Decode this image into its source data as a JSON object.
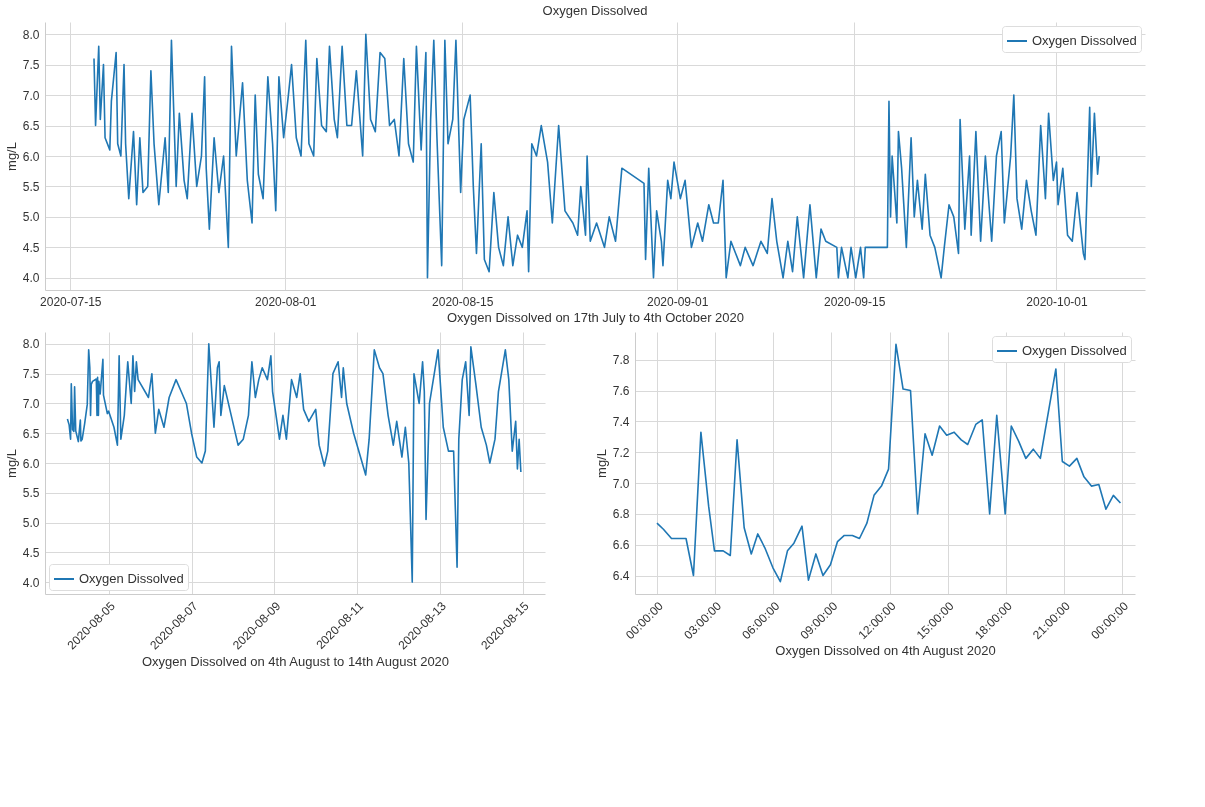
{
  "chart_data": [
    {
      "type": "line",
      "title": "Oxygen Dissolved",
      "xlabel": "Oxygen Dissolved on 17th July to 4th October 2020",
      "ylabel": "mg/L",
      "legend": "top right",
      "grid": true,
      "xlim": [
        "2020-07-13",
        "2020-10-08"
      ],
      "xticks": [
        "2020-07-15",
        "2020-08-01",
        "2020-08-15",
        "2020-09-01",
        "2020-09-15",
        "2020-10-01"
      ],
      "ylim": [
        3.8,
        8.2
      ],
      "yticks": [
        {
          "value": 4,
          "label": "4.0"
        },
        4.5,
        {
          "value": 5,
          "label": "5.0"
        },
        5.5,
        {
          "value": 6,
          "label": "6.0"
        },
        6.5,
        {
          "value": 7,
          "label": "7.0"
        },
        7.5,
        {
          "value": 8,
          "label": "8.0"
        }
      ],
      "x": [
        "2020-07-16T21:00",
        "2020-07-17T00:00",
        "2020-07-17T06:00",
        "2020-07-17T09:00",
        "2020-07-17T15:00",
        "2020-07-17T18:00",
        "2020-07-18T03:00",
        "2020-07-18T06:00",
        "2020-07-18T15:00",
        "2020-07-18T18:00",
        "2020-07-19T00:00",
        "2020-07-19T06:00",
        "2020-07-19T09:00",
        "2020-07-19T15:00",
        "2020-07-20T00:00",
        "2020-07-20T06:00",
        "2020-07-20T12:00",
        "2020-07-20T18:00",
        "2020-07-21T03:00",
        "2020-07-21T09:00",
        "2020-07-21T15:00",
        "2020-07-22T00:00",
        "2020-07-22T12:00",
        "2020-07-22T18:00",
        "2020-07-23T00:00",
        "2020-07-23T09:00",
        "2020-07-23T15:00",
        "2020-07-24T00:00",
        "2020-07-24T06:00",
        "2020-07-24T15:00",
        "2020-07-25T00:00",
        "2020-07-25T09:00",
        "2020-07-25T15:00",
        "2020-07-25T18:00",
        "2020-07-26T00:00",
        "2020-07-26T09:00",
        "2020-07-26T18:00",
        "2020-07-27T03:00",
        "2020-07-27T12:00",
        "2020-07-27T18:00",
        "2020-07-28T03:00",
        "2020-07-28T15:00",
        "2020-07-29T00:00",
        "2020-07-29T09:00",
        "2020-07-29T15:00",
        "2020-07-29T21:00",
        "2020-07-30T06:00",
        "2020-07-30T15:00",
        "2020-07-31T00:00",
        "2020-07-31T06:00",
        "2020-07-31T12:00",
        "2020-07-31T21:00",
        "2020-08-01T06:00",
        "2020-08-01T12:00",
        "2020-08-01T21:00",
        "2020-08-02T06:00",
        "2020-08-02T15:00",
        "2020-08-02T21:00",
        "2020-08-03T06:00",
        "2020-08-03T12:00",
        "2020-08-03T21:00",
        "2020-08-04T06:00",
        "2020-08-04T12:00",
        "2020-08-04T21:00",
        "2020-08-05T03:00",
        "2020-08-05T12:00",
        "2020-08-05T21:00",
        "2020-08-06T06:00",
        "2020-08-06T15:00",
        "2020-08-07T03:00",
        "2020-08-07T09:00",
        "2020-08-07T18:00",
        "2020-08-08T03:00",
        "2020-08-08T12:00",
        "2020-08-08T21:00",
        "2020-08-09T06:00",
        "2020-08-09T15:00",
        "2020-08-10T00:00",
        "2020-08-10T09:00",
        "2020-08-10T18:00",
        "2020-08-11T03:00",
        "2020-08-11T09:00",
        "2020-08-11T18:00",
        "2020-08-12T03:00",
        "2020-08-12T06:00",
        "2020-08-12T12:00",
        "2020-08-12T18:00",
        "2020-08-13T00:00",
        "2020-08-13T09:00",
        "2020-08-13T15:00",
        "2020-08-13T21:00",
        "2020-08-14T06:00",
        "2020-08-14T12:00",
        "2020-08-14T21:00",
        "2020-08-15T03:00",
        "2020-08-15T15:00",
        "2020-08-15T21:00",
        "2020-08-16T03:00",
        "2020-08-16T12:00",
        "2020-08-16T18:00",
        "2020-08-17T03:00",
        "2020-08-17T12:00",
        "2020-08-17T21:00",
        "2020-08-18T06:00",
        "2020-08-18T15:00",
        "2020-08-19T00:00",
        "2020-08-19T09:00",
        "2020-08-19T18:00",
        "2020-08-20T03:00",
        "2020-08-20T06:00",
        "2020-08-20T12:00",
        "2020-08-20T21:00",
        "2020-08-21T06:00",
        "2020-08-21T18:00",
        "2020-08-22T03:00",
        "2020-08-22T15:00",
        "2020-08-23T03:00",
        "2020-08-23T18:00",
        "2020-08-24T03:00",
        "2020-08-24T09:00",
        "2020-08-24T18:00",
        "2020-08-24T21:00",
        "2020-08-25T03:00",
        "2020-08-25T15:00",
        "2020-08-26T06:00",
        "2020-08-26T15:00",
        "2020-08-27T03:00",
        "2020-08-27T15:00",
        "2020-08-29T09:00",
        "2020-08-29T12:00",
        "2020-08-29T18:00",
        "2020-08-30T03:00",
        "2020-08-30T09:00",
        "2020-08-30T18:00",
        "2020-08-30T21:00",
        "2020-08-31T06:00",
        "2020-08-31T12:00",
        "2020-08-31T18:00",
        "2020-09-01T06:00",
        "2020-09-01T15:00",
        "2020-09-02T03:00",
        "2020-09-02T15:00",
        "2020-09-03T00:00",
        "2020-09-03T12:00",
        "2020-09-03T21:00",
        "2020-09-04T06:00",
        "2020-09-04T15:00",
        "2020-09-04T21:00",
        "2020-09-05T06:00",
        "2020-09-05T15:00",
        "2020-09-06T00:00",
        "2020-09-06T09:00",
        "2020-09-07T00:00",
        "2020-09-07T15:00",
        "2020-09-08T03:00",
        "2020-09-08T12:00",
        "2020-09-08T21:00",
        "2020-09-09T09:00",
        "2020-09-09T18:00",
        "2020-09-10T03:00",
        "2020-09-10T12:00",
        "2020-09-11T00:00",
        "2020-09-11T12:00",
        "2020-09-12T00:00",
        "2020-09-12T09:00",
        "2020-09-12T18:00",
        "2020-09-13T15:00",
        "2020-09-13T18:00",
        "2020-09-14T00:00",
        "2020-09-14T12:00",
        "2020-09-14T18:00",
        "2020-09-15T03:00",
        "2020-09-15T12:00",
        "2020-09-15T18:00",
        "2020-09-15T21:00",
        "2020-09-17T15:00",
        "2020-09-17T18:00",
        "2020-09-17T21:00",
        "2020-09-18T00:00",
        "2020-09-18T09:00",
        "2020-09-18T12:00",
        "2020-09-18T18:00",
        "2020-09-19T03:00",
        "2020-09-19T12:00",
        "2020-09-19T18:00",
        "2020-09-20T00:00",
        "2020-09-20T09:00",
        "2020-09-20T15:00",
        "2020-09-21T00:00",
        "2020-09-21T09:00",
        "2020-09-21T21:00",
        "2020-09-22T03:00",
        "2020-09-22T12:00",
        "2020-09-22T21:00",
        "2020-09-23T06:00",
        "2020-09-23T09:00",
        "2020-09-23T18:00",
        "2020-09-24T03:00",
        "2020-09-24T06:00",
        "2020-09-24T15:00",
        "2020-09-25T00:00",
        "2020-09-25T09:00",
        "2020-09-25T21:00",
        "2020-09-26T06:00",
        "2020-09-26T15:00",
        "2020-09-26T21:00",
        "2020-09-27T09:00",
        "2020-09-27T15:00",
        "2020-09-27T21:00",
        "2020-09-28T06:00",
        "2020-09-28T15:00",
        "2020-09-29T00:00",
        "2020-09-29T09:00",
        "2020-09-29T18:00",
        "2020-09-30T03:00",
        "2020-09-30T09:00",
        "2020-09-30T18:00",
        "2020-10-01T00:00",
        "2020-10-01T03:00",
        "2020-10-01T12:00",
        "2020-10-01T21:00",
        "2020-10-02T06:00",
        "2020-10-02T15:00",
        "2020-10-03T03:00",
        "2020-10-03T06:00",
        "2020-10-03T15:00",
        "2020-10-03T18:00",
        "2020-10-04T00:00",
        "2020-10-04T06:00",
        "2020-10-04T09:00"
      ],
      "series": [
        {
          "name": "Oxygen Dissolved",
          "color": "#1f77b4",
          "values": [
            7.6,
            6.5,
            7.8,
            6.6,
            7.5,
            6.3,
            6.1,
            6.9,
            7.7,
            6.2,
            6.0,
            7.5,
            6.2,
            5.3,
            6.4,
            5.2,
            6.3,
            5.4,
            5.5,
            7.4,
            6.2,
            5.2,
            6.3,
            5.4,
            7.9,
            5.5,
            6.7,
            5.6,
            5.3,
            6.7,
            5.5,
            6.0,
            7.3,
            5.8,
            4.8,
            6.3,
            5.4,
            6.0,
            4.5,
            7.8,
            6.0,
            7.2,
            5.6,
            4.9,
            7.0,
            5.7,
            5.3,
            7.3,
            6.2,
            5.1,
            7.3,
            6.3,
            7.0,
            7.5,
            6.3,
            6.0,
            7.9,
            6.2,
            6.0,
            7.6,
            6.5,
            6.4,
            7.8,
            6.6,
            6.3,
            7.8,
            6.5,
            6.5,
            7.4,
            6.0,
            8.0,
            6.6,
            6.4,
            7.7,
            7.6,
            6.5,
            6.6,
            6.0,
            7.6,
            6.2,
            5.9,
            7.8,
            6.1,
            7.7,
            4.0,
            6.6,
            7.9,
            6.3,
            4.2,
            7.9,
            6.2,
            6.6,
            7.9,
            5.4,
            6.6,
            7.0,
            5.5,
            4.4,
            6.2,
            4.3,
            4.1,
            5.4,
            4.5,
            4.2,
            5.0,
            4.2,
            4.7,
            4.5,
            5.1,
            4.1,
            6.2,
            6.0,
            6.5,
            5.9,
            4.9,
            6.5,
            5.1,
            4.9,
            4.7,
            5.5,
            4.7,
            6.0,
            4.6,
            4.9,
            4.5,
            5.0,
            4.6,
            5.8,
            5.55,
            4.3,
            5.8,
            4.0,
            5.1,
            4.6,
            4.2,
            5.6,
            5.3,
            5.9,
            5.3,
            5.6,
            4.5,
            4.9,
            4.6,
            5.2,
            4.9,
            4.9,
            5.6,
            4.0,
            4.6,
            4.4,
            4.2,
            4.5,
            4.2,
            4.6,
            4.4,
            5.3,
            4.6,
            4.0,
            4.6,
            4.1,
            5.0,
            4.0,
            5.2,
            4.0,
            4.8,
            4.6,
            4.5,
            4.0,
            4.5,
            4.0,
            4.5,
            4.0,
            4.5,
            4.0,
            4.5,
            4.5,
            6.9,
            5.0,
            6.0,
            4.9,
            6.4,
            5.8,
            4.5,
            6.3,
            5.0,
            5.6,
            4.8,
            5.7,
            4.7,
            4.5,
            4.0,
            4.5,
            5.2,
            5.0,
            4.4,
            6.6,
            4.8,
            6.0,
            4.7,
            6.4,
            4.6,
            6.0,
            4.6,
            6.0,
            6.4,
            4.9,
            6.0,
            7.0,
            5.3,
            4.8,
            5.6,
            5.1,
            4.7,
            6.5,
            5.3,
            6.7,
            5.6,
            5.9,
            5.2,
            5.8,
            4.7,
            4.6,
            5.4,
            4.4,
            4.3,
            6.8,
            5.5,
            6.7,
            5.7,
            6.0
          ]
        }
      ]
    },
    {
      "type": "line",
      "xlabel": "Oxygen Dissolved on 4th August to 14th August 2020",
      "ylabel": "mg/L",
      "legend": "bottom left",
      "grid": true,
      "xlim": [
        "2020-08-03T11:00",
        "2020-08-15T13:00"
      ],
      "xticks": [
        "2020-08-05",
        "2020-08-07",
        "2020-08-09",
        "2020-08-11",
        "2020-08-13",
        "2020-08-15"
      ],
      "ylim": [
        3.8,
        8.2
      ],
      "yticks": [
        {
          "value": 4,
          "label": "4.0"
        },
        4.5,
        {
          "value": 5,
          "label": "5.0"
        },
        5.5,
        {
          "value": 6,
          "label": "6.0"
        },
        6.5,
        {
          "value": 7,
          "label": "7.0"
        },
        7.5,
        {
          "value": 8,
          "label": "8.0"
        }
      ],
      "x": [
        "2020-08-04T00:00",
        "2020-08-04T01:00",
        "2020-08-04T01:50",
        "2020-08-04T02:15",
        "2020-08-04T03:00",
        "2020-08-04T03:45",
        "2020-08-04T04:10",
        "2020-08-04T04:50",
        "2020-08-04T06:20",
        "2020-08-04T07:30",
        "2020-08-04T07:50",
        "2020-08-04T08:35",
        "2020-08-04T10:00",
        "2020-08-04T11:30",
        "2020-08-04T12:20",
        "2020-08-04T13:00",
        "2020-08-04T13:25",
        "2020-08-04T13:50",
        "2020-08-04T14:35",
        "2020-08-04T16:45",
        "2020-08-04T17:10",
        "2020-08-04T17:30",
        "2020-08-04T18:00",
        "2020-08-04T18:15",
        "2020-08-04T19:00",
        "2020-08-04T20:35",
        "2020-08-04T20:55",
        "2020-08-04T23:10",
        "2020-08-04T23:55",
        "2020-08-05T03:00",
        "2020-08-05T05:00",
        "2020-08-05T06:00",
        "2020-08-05T07:00",
        "2020-08-05T09:00",
        "2020-08-05T11:00",
        "2020-08-05T13:00",
        "2020-08-05T14:00",
        "2020-08-05T15:00",
        "2020-08-05T16:00",
        "2020-08-05T17:00",
        "2020-08-05T23:00",
        "2020-08-06T01:00",
        "2020-08-06T03:00",
        "2020-08-06T05:00",
        "2020-08-06T08:00",
        "2020-08-06T11:00",
        "2020-08-06T15:00",
        "2020-08-06T18:00",
        "2020-08-06T21:00",
        "2020-08-07T00:00",
        "2020-08-07T03:00",
        "2020-08-07T06:00",
        "2020-08-07T08:00",
        "2020-08-07T10:00",
        "2020-08-07T13:00",
        "2020-08-07T15:00",
        "2020-08-07T16:00",
        "2020-08-07T17:00",
        "2020-08-07T19:00",
        "2020-08-07T23:00",
        "2020-08-08T03:00",
        "2020-08-08T06:00",
        "2020-08-08T09:00",
        "2020-08-08T11:00",
        "2020-08-08T13:00",
        "2020-08-08T15:00",
        "2020-08-08T17:00",
        "2020-08-08T20:00",
        "2020-08-08T22:00",
        "2020-08-08T23:00",
        "2020-08-09T03:00",
        "2020-08-09T05:00",
        "2020-08-09T07:00",
        "2020-08-09T10:00",
        "2020-08-09T13:00",
        "2020-08-09T15:00",
        "2020-08-09T17:00",
        "2020-08-09T20:00",
        "2020-08-10T00:00",
        "2020-08-10T02:00",
        "2020-08-10T05:00",
        "2020-08-10T07:00",
        "2020-08-10T10:00",
        "2020-08-10T13:00",
        "2020-08-10T15:00",
        "2020-08-10T16:00",
        "2020-08-10T18:00",
        "2020-08-10T22:00",
        "2020-08-11T02:00",
        "2020-08-11T05:00",
        "2020-08-11T07:00",
        "2020-08-11T10:00",
        "2020-08-11T13:00",
        "2020-08-11T15:00",
        "2020-08-11T18:00",
        "2020-08-11T21:00",
        "2020-08-11T23:00",
        "2020-08-12T02:00",
        "2020-08-12T04:00",
        "2020-08-12T06:00",
        "2020-08-12T08:00",
        "2020-08-12T09:00",
        "2020-08-12T12:00",
        "2020-08-12T14:00",
        "2020-08-12T15:00",
        "2020-08-12T16:00",
        "2020-08-12T18:00",
        "2020-08-12T23:00",
        "2020-08-13T02:00",
        "2020-08-13T05:00",
        "2020-08-13T08:00",
        "2020-08-13T10:00",
        "2020-08-13T11:00",
        "2020-08-13T13:00",
        "2020-08-13T15:00",
        "2020-08-13T17:00",
        "2020-08-13T18:00",
        "2020-08-13T21:00",
        "2020-08-14T00:00",
        "2020-08-14T03:00",
        "2020-08-14T05:00",
        "2020-08-14T08:00",
        "2020-08-14T10:00",
        "2020-08-14T14:00",
        "2020-08-14T16:00",
        "2020-08-14T18:00",
        "2020-08-14T20:00",
        "2020-08-14T21:00",
        "2020-08-14T22:00",
        "2020-08-14T23:00"
      ],
      "series": [
        {
          "name": "Oxygen Dissolved",
          "color": "#1f77b4",
          "values": [
            6.74,
            6.64,
            6.4,
            7.33,
            6.56,
            6.53,
            7.28,
            6.54,
            6.36,
            6.72,
            6.37,
            6.4,
            6.66,
            6.98,
            7.9,
            7.6,
            6.8,
            7.32,
            7.37,
            7.41,
            6.8,
            7.44,
            6.8,
            7.37,
            7.16,
            7.74,
            7.14,
            6.83,
            6.87,
            6.6,
            6.3,
            7.8,
            6.4,
            6.8,
            7.7,
            7.0,
            7.8,
            7.2,
            7.7,
            7.4,
            7.1,
            7.5,
            6.5,
            6.9,
            6.6,
            7.1,
            7.4,
            7.2,
            7.0,
            6.5,
            6.1,
            6.0,
            6.2,
            8.0,
            6.6,
            7.6,
            7.7,
            6.8,
            7.3,
            6.8,
            6.3,
            6.4,
            6.8,
            7.7,
            7.1,
            7.4,
            7.6,
            7.4,
            7.8,
            7.2,
            6.4,
            6.8,
            6.4,
            7.4,
            7.1,
            7.5,
            6.9,
            6.7,
            6.9,
            6.3,
            5.95,
            6.2,
            7.5,
            7.7,
            7.1,
            7.6,
            7.0,
            6.5,
            6.1,
            5.8,
            6.4,
            7.9,
            7.6,
            7.5,
            6.8,
            6.3,
            6.7,
            6.1,
            6.6,
            6.0,
            4.0,
            7.5,
            7.0,
            7.7,
            7.2,
            5.05,
            7.0,
            7.9,
            6.6,
            6.2,
            6.2,
            4.25,
            6.4,
            7.4,
            7.7,
            6.8,
            7.95,
            7.3,
            6.6,
            6.3,
            6.0,
            6.4,
            7.2,
            7.9,
            7.4,
            6.2,
            6.7,
            5.9,
            6.4,
            5.85
          ]
        }
      ]
    },
    {
      "type": "line",
      "xlabel": "Oxygen Dissolved on 4th August 2020",
      "ylabel": "mg/L",
      "legend": "top right",
      "grid": true,
      "xlim": [
        "2020-08-03T22:52",
        "2020-08-05T00:40"
      ],
      "xticks": [
        {
          "value": "2020-08-04T00:00",
          "label": "00:00:00"
        },
        {
          "value": "2020-08-04T03:00",
          "label": "03:00:00"
        },
        {
          "value": "2020-08-04T06:00",
          "label": "06:00:00"
        },
        {
          "value": "2020-08-04T09:00",
          "label": "09:00:00"
        },
        {
          "value": "2020-08-04T12:00",
          "label": "12:00:00"
        },
        {
          "value": "2020-08-04T15:00",
          "label": "15:00:00"
        },
        {
          "value": "2020-08-04T18:00",
          "label": "18:00:00"
        },
        {
          "value": "2020-08-04T21:00",
          "label": "21:00:00"
        },
        {
          "value": "2020-08-05T00:00",
          "label": "00:00:00"
        }
      ],
      "ylim": [
        6.28,
        7.98
      ],
      "yticks": [
        6.4,
        6.6,
        6.8,
        {
          "value": 7,
          "label": "7.0"
        },
        7.2,
        7.4,
        7.6,
        7.8
      ],
      "x": [
        "2020-08-04T00:00",
        "2020-08-04T00:20",
        "2020-08-04T00:45",
        "2020-08-04T01:30",
        "2020-08-04T01:53",
        "2020-08-04T02:16",
        "2020-08-04T02:40",
        "2020-08-04T02:58",
        "2020-08-04T03:25",
        "2020-08-04T03:47",
        "2020-08-04T04:08",
        "2020-08-04T04:30",
        "2020-08-04T04:52",
        "2020-08-04T05:12",
        "2020-08-04T05:34",
        "2020-08-04T05:59",
        "2020-08-04T06:22",
        "2020-08-04T06:44",
        "2020-08-04T07:04",
        "2020-08-04T07:29",
        "2020-08-04T07:49",
        "2020-08-04T08:12",
        "2020-08-04T08:34",
        "2020-08-04T08:57",
        "2020-08-04T09:19",
        "2020-08-04T09:40",
        "2020-08-04T10:05",
        "2020-08-04T10:27",
        "2020-08-04T10:50",
        "2020-08-04T11:12",
        "2020-08-04T11:35",
        "2020-08-04T11:57",
        "2020-08-04T12:20",
        "2020-08-04T12:42",
        "2020-08-04T13:05",
        "2020-08-04T13:27",
        "2020-08-04T13:50",
        "2020-08-04T14:12",
        "2020-08-04T14:35",
        "2020-08-04T14:57",
        "2020-08-04T15:20",
        "2020-08-04T15:42",
        "2020-08-04T16:02",
        "2020-08-04T16:27",
        "2020-08-04T16:47",
        "2020-08-04T17:10",
        "2020-08-04T17:32",
        "2020-08-04T17:58",
        "2020-08-04T18:17",
        "2020-08-04T18:40",
        "2020-08-04T19:02",
        "2020-08-04T19:25",
        "2020-08-04T19:47",
        "2020-08-04T20:35",
        "2020-08-04T20:55",
        "2020-08-04T21:17",
        "2020-08-04T21:40",
        "2020-08-04T22:02",
        "2020-08-04T22:25",
        "2020-08-04T22:48",
        "2020-08-04T23:10",
        "2020-08-04T23:33",
        "2020-08-04T23:55"
      ],
      "series": [
        {
          "name": "Oxygen Dissolved",
          "color": "#1f77b4",
          "values": [
            6.74,
            6.7,
            6.64,
            6.64,
            6.4,
            7.33,
            6.85,
            6.56,
            6.56,
            6.53,
            7.28,
            6.71,
            6.54,
            6.67,
            6.58,
            6.45,
            6.36,
            6.56,
            6.61,
            6.72,
            6.37,
            6.54,
            6.4,
            6.47,
            6.62,
            6.66,
            6.66,
            6.64,
            6.74,
            6.92,
            6.98,
            7.09,
            7.9,
            7.61,
            7.6,
            6.8,
            7.32,
            7.18,
            7.37,
            7.31,
            7.33,
            7.28,
            7.25,
            7.38,
            7.41,
            6.8,
            7.44,
            6.8,
            7.37,
            7.27,
            7.16,
            7.22,
            7.16,
            7.74,
            7.14,
            7.11,
            7.16,
            7.04,
            6.98,
            6.99,
            6.83,
            6.92,
            6.87
          ]
        }
      ]
    }
  ]
}
